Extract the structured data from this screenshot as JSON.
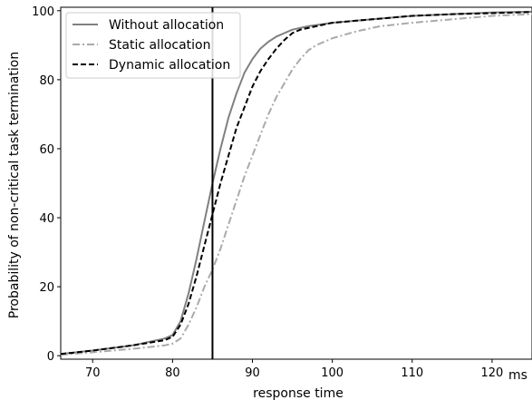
{
  "chart_data": {
    "type": "line",
    "title": "",
    "xlabel": "response time",
    "ylabel": "Probability of non-critical task termination",
    "x_unit_label": "ms",
    "xlim": [
      66,
      125
    ],
    "ylim": [
      -1,
      101
    ],
    "x_ticks": [
      70,
      80,
      90,
      100,
      110,
      120
    ],
    "y_ticks": [
      0,
      20,
      40,
      60,
      80,
      100
    ],
    "grid": false,
    "legend_position": "top-left",
    "vline": 85,
    "series": [
      {
        "name": "Without allocation",
        "color": "#808080",
        "dash": "solid",
        "x": [
          66,
          70,
          75,
          79,
          80,
          81,
          82,
          83,
          84,
          85,
          86,
          87,
          88,
          89,
          90,
          91,
          92,
          93,
          94,
          95,
          97,
          100,
          105,
          110,
          115,
          120,
          125
        ],
        "y": [
          0.5,
          1.5,
          3,
          5,
          6,
          10,
          18,
          28,
          39,
          50,
          60,
          69,
          76,
          82,
          86,
          89,
          91,
          92.5,
          93.5,
          94.5,
          95.5,
          96.5,
          97.5,
          98.5,
          99,
          99.5,
          99.7
        ]
      },
      {
        "name": "Static allocation",
        "color": "#aaaaaa",
        "dash": "dashdot",
        "x": [
          66,
          70,
          75,
          79,
          80,
          81,
          82,
          83,
          84,
          85,
          86,
          87,
          88,
          89,
          90,
          91,
          92,
          93,
          94,
          95,
          96,
          97,
          98,
          100,
          103,
          106,
          110,
          115,
          120,
          125
        ],
        "y": [
          0.3,
          1,
          2,
          3,
          3.5,
          5,
          9,
          14,
          20,
          25,
          31,
          38,
          45,
          52,
          58,
          64,
          70,
          75,
          79,
          83,
          86,
          88.5,
          90,
          92,
          94,
          95.5,
          96.5,
          97.5,
          98.5,
          99
        ]
      },
      {
        "name": "Dynamic allocation",
        "color": "#000000",
        "dash": "dashed",
        "x": [
          66,
          70,
          75,
          79,
          80,
          81,
          82,
          83,
          84,
          85,
          86,
          87,
          88,
          89,
          90,
          91,
          92,
          93,
          94,
          95,
          96,
          98,
          100,
          105,
          110,
          115,
          120,
          125
        ],
        "y": [
          0.5,
          1.5,
          3,
          4.5,
          5.5,
          9,
          15,
          23,
          32,
          41,
          50,
          58,
          66,
          72,
          78,
          82.5,
          86,
          89,
          91.5,
          93.5,
          94.5,
          95.5,
          96.5,
          97.5,
          98.5,
          99,
          99.3,
          99.6
        ]
      }
    ]
  }
}
